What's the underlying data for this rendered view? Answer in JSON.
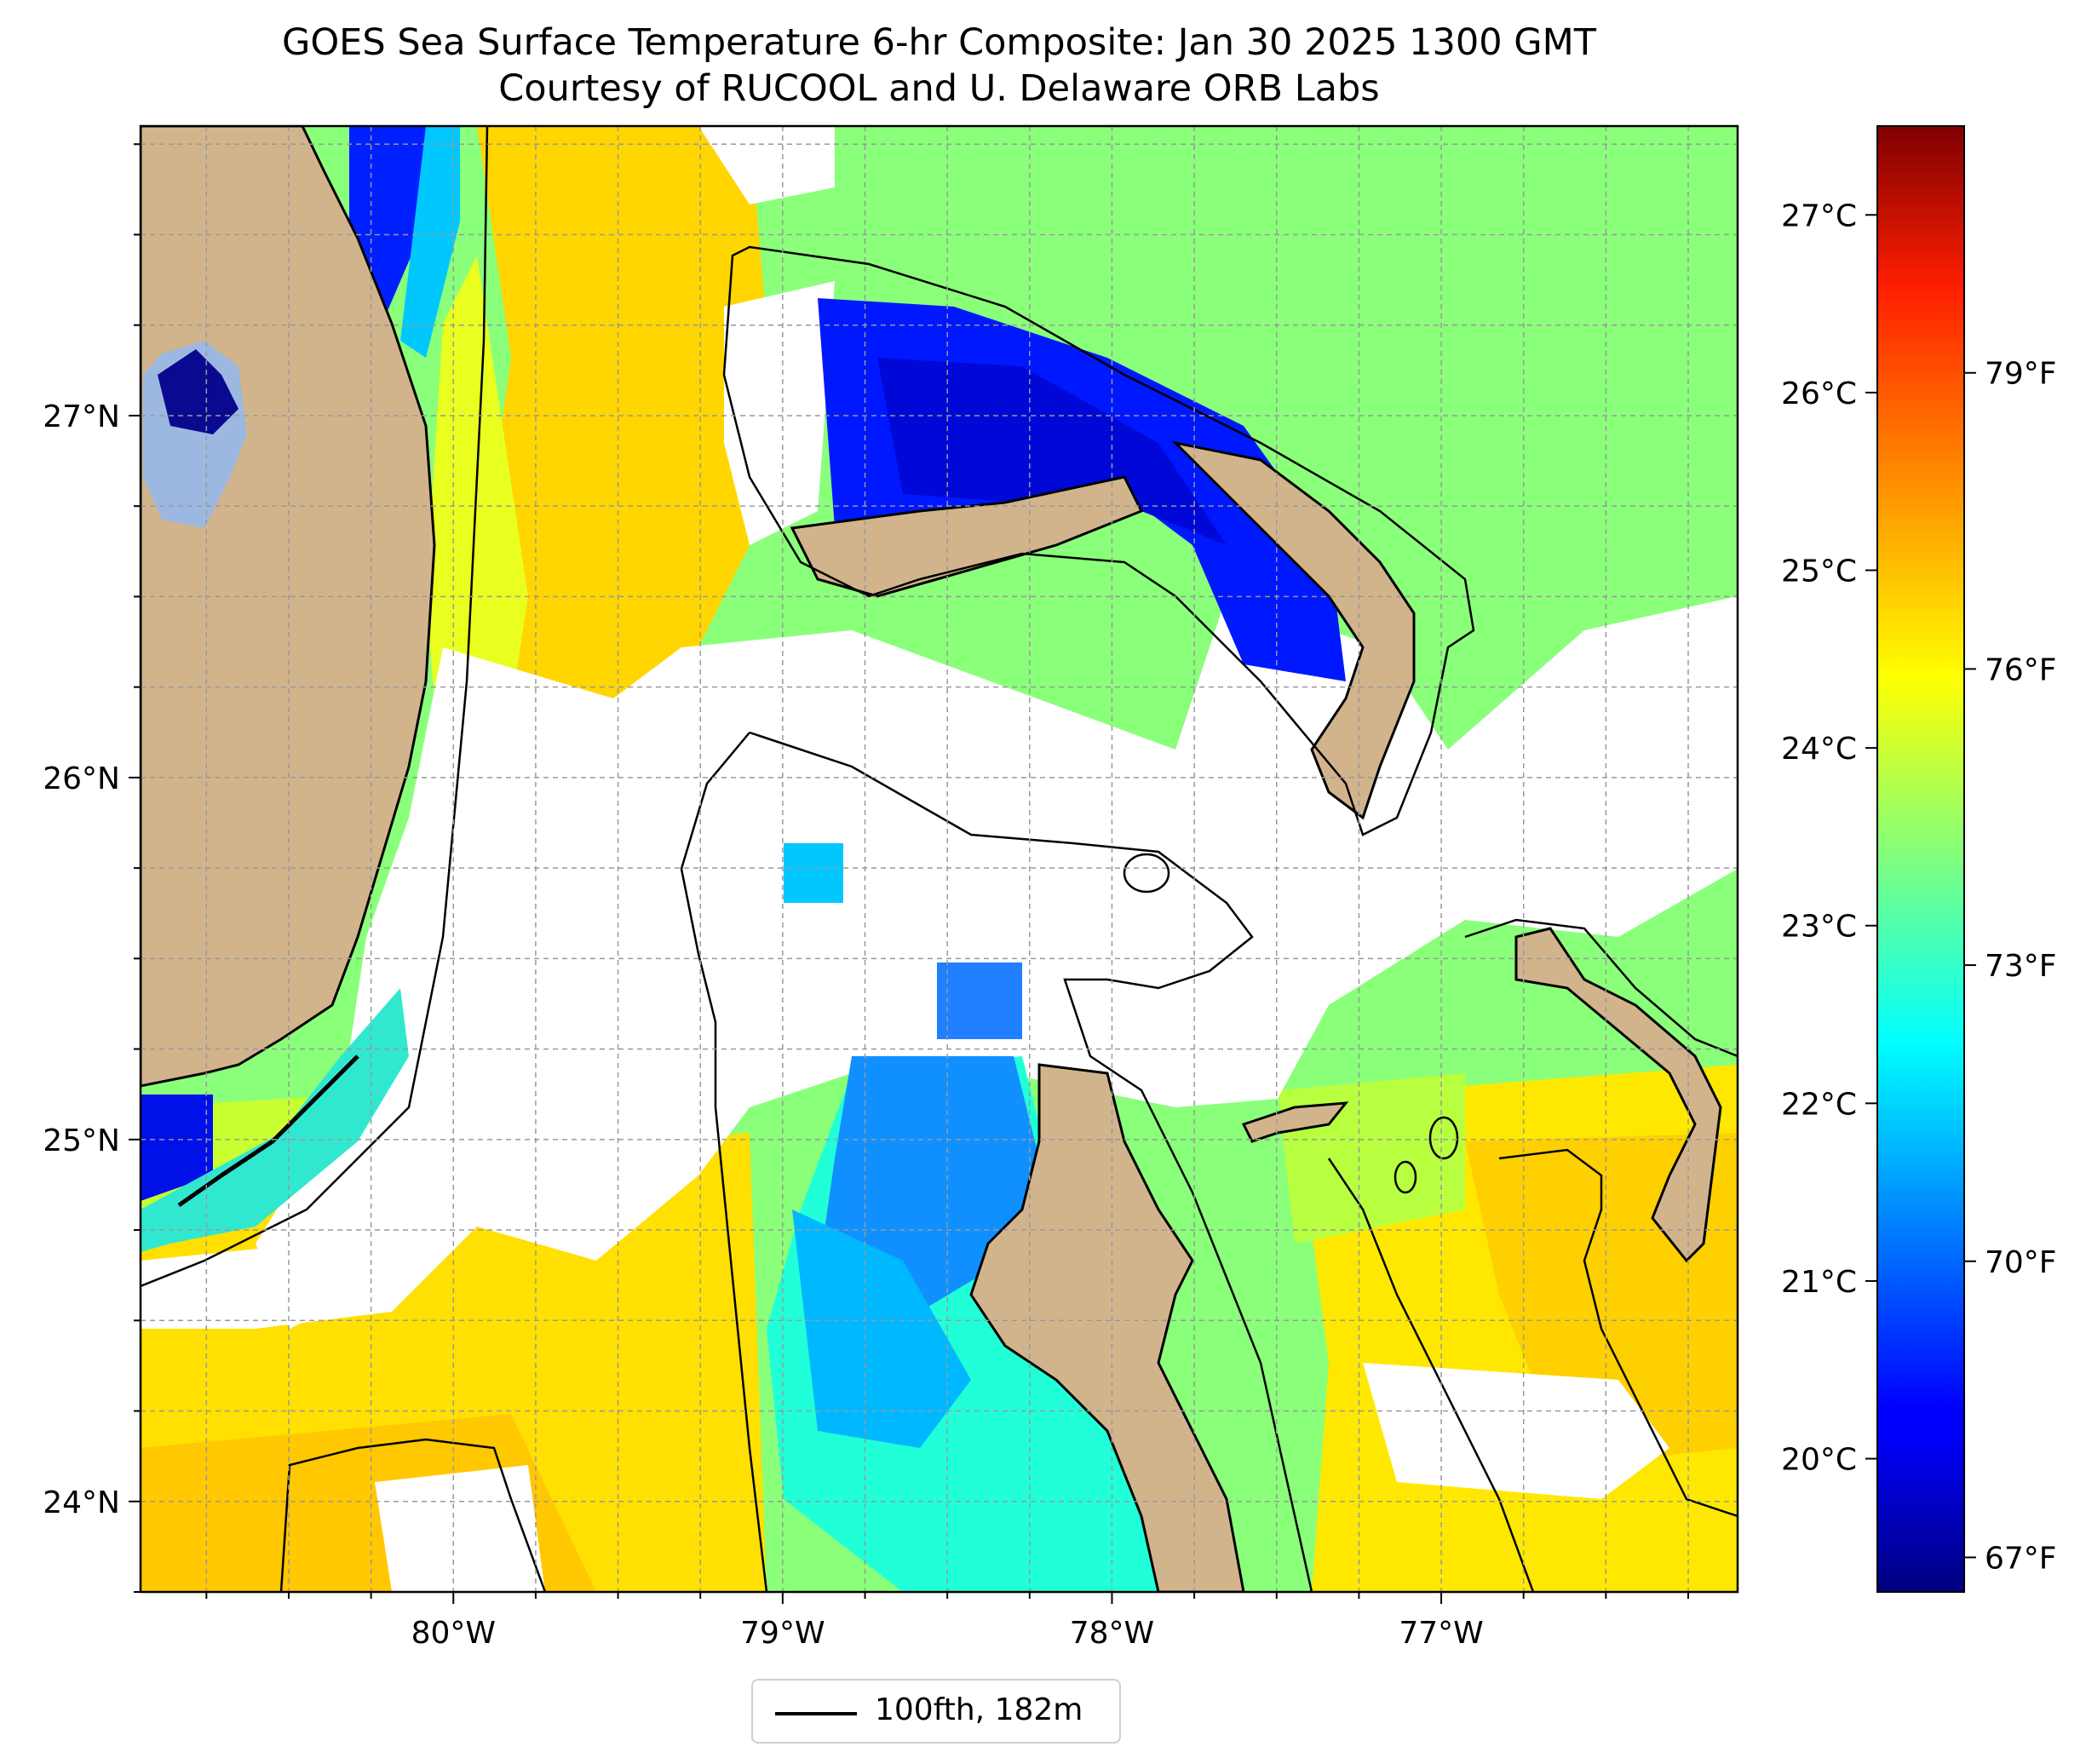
{
  "title": {
    "line1": "GOES Sea Surface Temperature 6-hr Composite: Jan 30 2025 1300 GMT",
    "line2": "Courtesy of RUCOOL and U. Delaware ORB Labs"
  },
  "map": {
    "lon_range": [
      -80.95,
      -76.1
    ],
    "lat_range": [
      23.75,
      27.8
    ],
    "lon_ticks": [
      {
        "value": -80,
        "label": "80°W"
      },
      {
        "value": -79,
        "label": "79°W"
      },
      {
        "value": -78,
        "label": "78°W"
      },
      {
        "value": -77,
        "label": "77°W"
      }
    ],
    "lat_ticks": [
      {
        "value": 24,
        "label": "24°N"
      },
      {
        "value": 25,
        "label": "25°N"
      },
      {
        "value": 26,
        "label": "26°N"
      },
      {
        "value": 27,
        "label": "27°N"
      }
    ],
    "gridlines": true,
    "features": [
      "Florida peninsula",
      "Lake Okeechobee",
      "Florida Keys",
      "Grand Bahama",
      "Abaco",
      "Andros",
      "Eleuthera",
      "Berry Islands",
      "New Providence"
    ],
    "colors": {
      "land": "#d2b48c",
      "lake": "#9cb8e0",
      "no_data": "#ffffff",
      "contour": "#000000"
    }
  },
  "colorbar": {
    "colormap": "jet",
    "celsius_ticks": [
      {
        "value": 20,
        "label": "20°C"
      },
      {
        "value": 21,
        "label": "21°C"
      },
      {
        "value": 22,
        "label": "22°C"
      },
      {
        "value": 23,
        "label": "23°C"
      },
      {
        "value": 24,
        "label": "24°C"
      },
      {
        "value": 25,
        "label": "25°C"
      },
      {
        "value": 26,
        "label": "26°C"
      },
      {
        "value": 27,
        "label": "27°C"
      }
    ],
    "fahrenheit_ticks": [
      {
        "value": 67,
        "label": "67°F"
      },
      {
        "value": 70,
        "label": "70°F"
      },
      {
        "value": 73,
        "label": "73°F"
      },
      {
        "value": 76,
        "label": "76°F"
      },
      {
        "value": 79,
        "label": "79°F"
      }
    ],
    "range_celsius": [
      19.25,
      27.5
    ]
  },
  "legend": {
    "label": "100fth, 182m"
  }
}
